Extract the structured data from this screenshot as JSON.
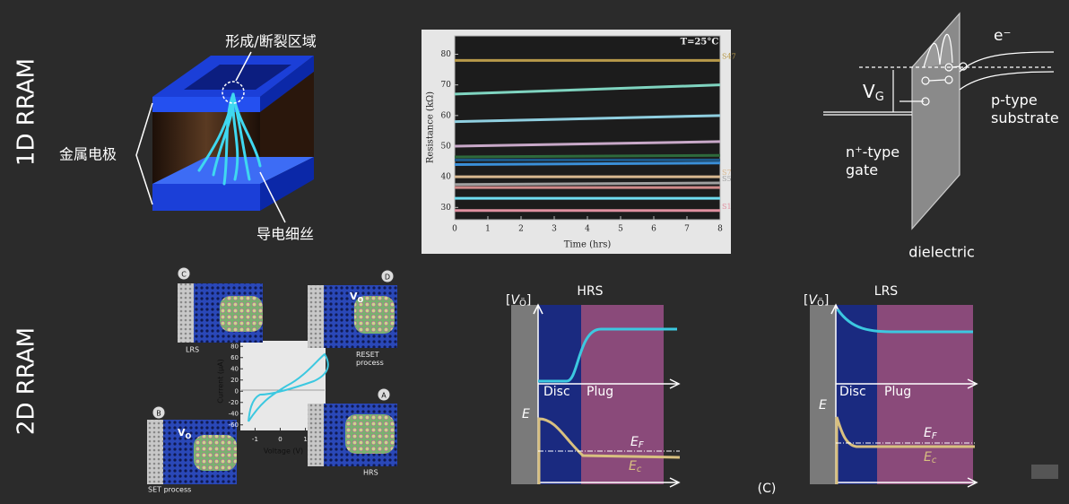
{
  "sections": {
    "top": "1D RRAM",
    "bottom": "2D RRAM"
  },
  "filament_figure": {
    "region_label": "形成/断裂区域",
    "electrode_label": "金属电极",
    "filament_label": "导电细丝"
  },
  "resistance_plot": {
    "title": "T=25°C",
    "x_label": "Time (hrs)",
    "y_label": "Resistance (kΩ)",
    "x": [
      0,
      8
    ],
    "xlim": [
      0,
      8
    ],
    "ylim": [
      26,
      86
    ],
    "xticks": [
      0,
      1,
      2,
      3,
      4,
      5,
      6,
      7,
      8
    ],
    "yticks": [
      30,
      40,
      50,
      60,
      70,
      80
    ],
    "series": [
      {
        "name": "S47",
        "color": "#b89a4a",
        "values": [
          78,
          78
        ]
      },
      {
        "color": "#7fd4c0",
        "values": [
          67,
          70
        ]
      },
      {
        "color": "#8fcfe0",
        "values": [
          58,
          60
        ]
      },
      {
        "color": "#c9a9c9",
        "values": [
          50,
          51.5
        ]
      },
      {
        "color": "#2e6a3c",
        "values": [
          46.5,
          47
        ]
      },
      {
        "color": "#1e5a8a",
        "values": [
          45.5,
          45.5
        ]
      },
      {
        "color": "#3a8fd8",
        "values": [
          44,
          44.5
        ]
      },
      {
        "name": "S7",
        "color": "#d8b890",
        "values": [
          40,
          40
        ]
      },
      {
        "name": "S5",
        "color": "#a0a0a0",
        "values": [
          37.5,
          38
        ]
      },
      {
        "color": "#d08a8a",
        "values": [
          36.5,
          36.5
        ]
      },
      {
        "color": "#6fdcf0",
        "values": [
          33,
          33
        ]
      },
      {
        "name": "S1",
        "color": "#e090a0",
        "values": [
          29,
          29
        ]
      }
    ]
  },
  "iv_plot": {
    "x_label": "Voltage (V)",
    "y_label": "Current (μA)",
    "xlim": [
      -1.3,
      1.8
    ],
    "ylim": [
      -70,
      90
    ],
    "xticks": [
      -1,
      0,
      1
    ],
    "yticks": [
      80,
      60,
      40,
      20,
      0,
      -20,
      -40,
      -60
    ],
    "insets": {
      "c": "C",
      "d": "D",
      "b": "B",
      "a": "A"
    },
    "lrs": "LRS",
    "reset": [
      "RESET",
      "process"
    ],
    "set": "SET process",
    "hrs": "HRS",
    "vo": {
      "main": "V",
      "sub": "O"
    }
  },
  "band_diagram": {
    "e": "e⁻",
    "vg": {
      "main": "V",
      "sub": "G"
    },
    "substrate": [
      "p-type",
      "substrate"
    ],
    "gate": [
      "n⁺-type",
      "gate"
    ],
    "dielectric": "dielectric"
  },
  "vacancy_diagrams": {
    "axis": {
      "open": "[",
      "main": "V",
      "sub": "Ö",
      "close": "]"
    },
    "hrs": "HRS",
    "lrs": "LRS",
    "disc": "Disc",
    "plug": "Plug",
    "energy": "E",
    "ef": {
      "main": "E",
      "sub": "F"
    },
    "ec": {
      "main": "E",
      "sub": "c"
    },
    "caption": "(C)"
  }
}
